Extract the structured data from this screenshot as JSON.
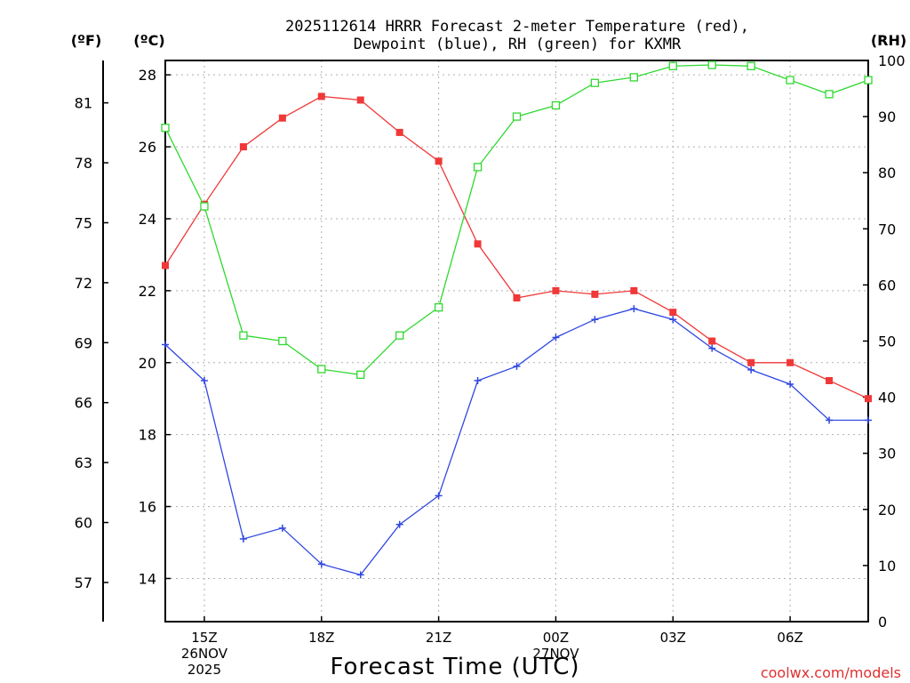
{
  "chart_data": {
    "type": "line",
    "title_lines": [
      "2025112614 HRRR Forecast 2-meter Temperature (red),",
      "Dewpoint (blue), RH (green) for KXMR"
    ],
    "xlabel": "Forecast Time (UTC)",
    "credit": "coolwx.com/models",
    "x_hours": [
      14,
      15,
      16,
      17,
      18,
      19,
      20,
      21,
      22,
      23,
      24,
      25,
      26,
      27,
      28,
      29,
      30,
      31,
      32
    ],
    "x_range": [
      14,
      32
    ],
    "x_ticks": [
      {
        "hour": 15,
        "lines": [
          "15Z",
          "26NOV",
          "2025"
        ]
      },
      {
        "hour": 18,
        "lines": [
          "18Z"
        ]
      },
      {
        "hour": 21,
        "lines": [
          "21Z"
        ]
      },
      {
        "hour": 24,
        "lines": [
          "00Z",
          "27NOV"
        ]
      },
      {
        "hour": 27,
        "lines": [
          "03Z"
        ]
      },
      {
        "hour": 30,
        "lines": [
          "06Z"
        ]
      }
    ],
    "axes": {
      "celsius": {
        "label": "(ºC)",
        "range": [
          12.8,
          28.4
        ],
        "ticks": [
          14,
          16,
          18,
          20,
          22,
          24,
          26,
          28
        ]
      },
      "fahrenheit": {
        "label": "(ºF)",
        "ticks": [
          57,
          60,
          63,
          66,
          69,
          72,
          75,
          78,
          81
        ]
      },
      "rh": {
        "label": "(RH)",
        "range": [
          0,
          100
        ],
        "ticks": [
          0,
          10,
          20,
          30,
          40,
          50,
          60,
          70,
          80,
          90,
          100
        ]
      }
    },
    "series": [
      {
        "name": "Temperature",
        "axis": "celsius",
        "color": "#f03838",
        "marker": "filled-square",
        "values": [
          22.7,
          24.4,
          26.0,
          26.8,
          27.4,
          27.3,
          26.4,
          25.6,
          23.3,
          21.8,
          22.0,
          21.9,
          22.0,
          21.4,
          20.6,
          20.0,
          20.0,
          19.5,
          19.0
        ]
      },
      {
        "name": "Dewpoint",
        "axis": "celsius",
        "color": "#3048e0",
        "marker": "plus",
        "values": [
          20.5,
          19.5,
          15.1,
          15.4,
          14.4,
          14.1,
          15.5,
          16.3,
          19.5,
          19.9,
          20.7,
          21.2,
          21.5,
          21.2,
          20.4,
          19.8,
          19.4,
          18.4,
          18.4
        ]
      },
      {
        "name": "RH",
        "axis": "rh",
        "color": "#30d830",
        "marker": "open-square",
        "values": [
          88,
          74,
          51,
          50,
          45,
          44,
          51,
          56,
          81,
          90,
          92,
          96,
          97,
          99,
          99.2,
          99,
          96.5,
          94,
          96.5
        ]
      }
    ]
  }
}
